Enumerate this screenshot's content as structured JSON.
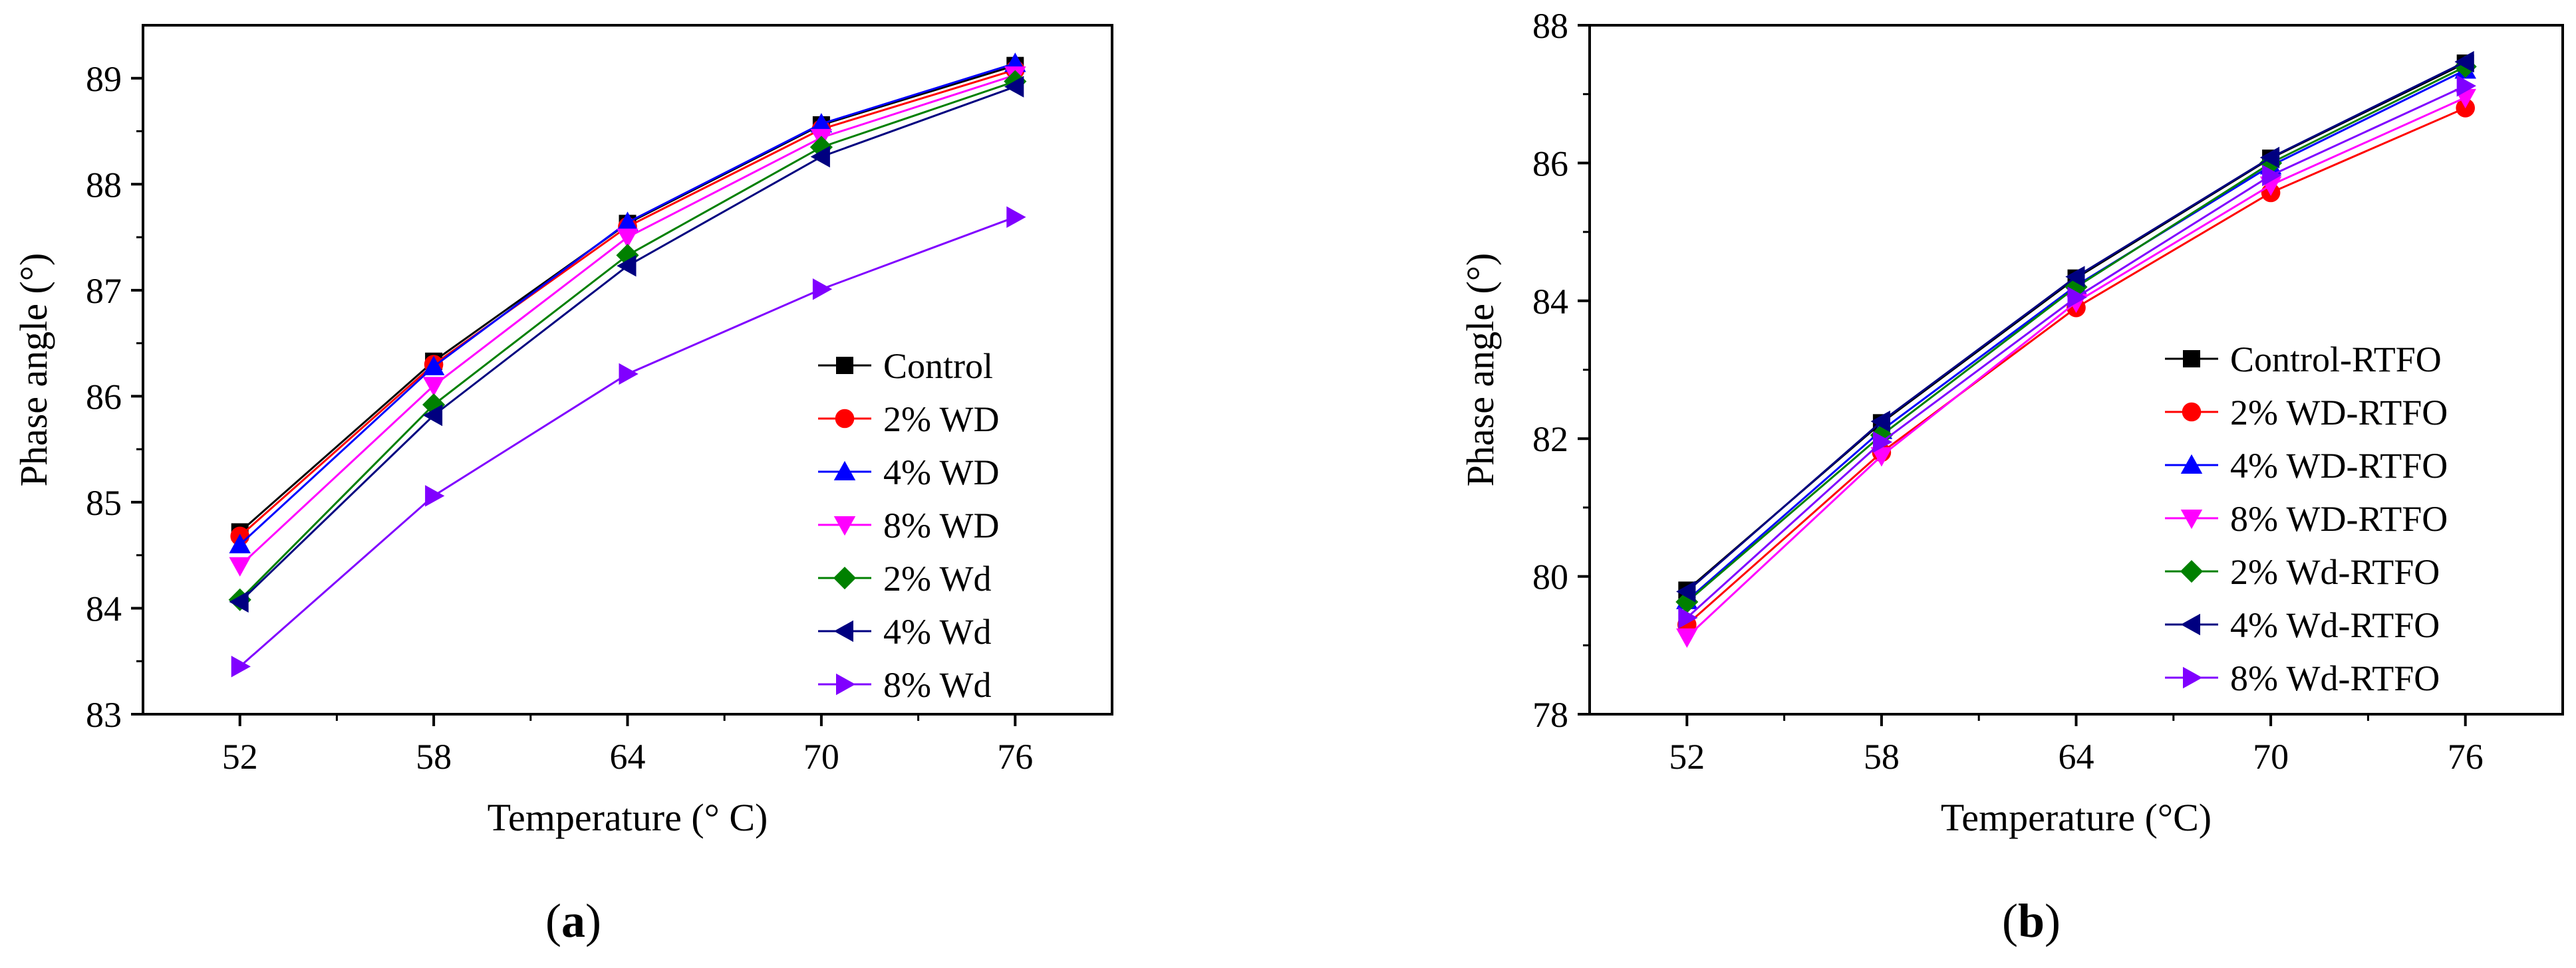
{
  "chart_data": [
    {
      "type": "line",
      "panel_label": "a",
      "xlabel": "Temperature (° C)",
      "ylabel": "Phase angle (°)",
      "x": [
        52,
        58,
        64,
        70,
        76
      ],
      "xticks": [
        "52",
        "58",
        "64",
        "70",
        "76"
      ],
      "ylim": [
        83,
        89.5
      ],
      "yticks": [
        83,
        84,
        85,
        86,
        87,
        88,
        89
      ],
      "legend_position": "bottom-right",
      "series": [
        {
          "name": "Control",
          "color": "#000000",
          "marker": "square",
          "values": [
            84.72,
            86.33,
            87.63,
            88.56,
            89.12
          ]
        },
        {
          "name": "2% WD",
          "color": "#ff0000",
          "marker": "circle",
          "values": [
            84.68,
            86.3,
            87.6,
            88.52,
            89.08
          ]
        },
        {
          "name": "4% WD",
          "color": "#0000ff",
          "marker": "triangle-up",
          "values": [
            84.6,
            86.28,
            87.64,
            88.57,
            89.14
          ]
        },
        {
          "name": "8% WD",
          "color": "#ff00ff",
          "marker": "triangle-down",
          "values": [
            84.4,
            86.1,
            87.5,
            88.44,
            89.03
          ]
        },
        {
          "name": "2% Wd",
          "color": "#008000",
          "marker": "diamond",
          "values": [
            84.08,
            85.92,
            87.33,
            88.35,
            88.97
          ]
        },
        {
          "name": "4% Wd",
          "color": "#000080",
          "marker": "triangle-left",
          "values": [
            84.06,
            85.82,
            87.23,
            88.26,
            88.92
          ]
        },
        {
          "name": "8% Wd",
          "color": "#8000ff",
          "marker": "triangle-right",
          "values": [
            83.45,
            85.06,
            86.21,
            87.01,
            87.69
          ]
        }
      ]
    },
    {
      "type": "line",
      "panel_label": "b",
      "xlabel": "Temperature (°C)",
      "ylabel": "Phase angle (°)",
      "x": [
        52,
        58,
        64,
        70,
        76
      ],
      "xticks": [
        "52",
        "58",
        "64",
        "70",
        "76"
      ],
      "ylim": [
        78,
        88
      ],
      "yticks": [
        78,
        80,
        82,
        84,
        86,
        88
      ],
      "legend_position": "bottom-right",
      "series": [
        {
          "name": "Control-RTFO",
          "color": "#000000",
          "marker": "square",
          "values": [
            79.8,
            82.23,
            84.33,
            86.07,
            87.45
          ]
        },
        {
          "name": "2% WD-RTFO",
          "color": "#ff0000",
          "marker": "circle",
          "values": [
            79.3,
            81.8,
            83.9,
            85.57,
            86.8
          ]
        },
        {
          "name": "4% WD-RTFO",
          "color": "#0000ff",
          "marker": "triangle-up",
          "values": [
            79.65,
            82.12,
            84.22,
            85.96,
            87.35
          ]
        },
        {
          "name": "8% WD-RTFO",
          "color": "#ff00ff",
          "marker": "triangle-down",
          "values": [
            79.12,
            81.75,
            83.98,
            85.68,
            86.95
          ]
        },
        {
          "name": "2% Wd-RTFO",
          "color": "#008000",
          "marker": "diamond",
          "values": [
            79.63,
            82.05,
            84.2,
            86.0,
            87.4
          ]
        },
        {
          "name": "4% Wd-RTFO",
          "color": "#000080",
          "marker": "triangle-left",
          "values": [
            79.78,
            82.25,
            84.35,
            86.08,
            87.47
          ]
        },
        {
          "name": "8% Wd-RTFO",
          "color": "#8000ff",
          "marker": "triangle-right",
          "values": [
            79.4,
            81.95,
            84.05,
            85.82,
            87.12
          ]
        }
      ]
    }
  ],
  "captions": {
    "a": "(a)",
    "b": "(b)"
  }
}
